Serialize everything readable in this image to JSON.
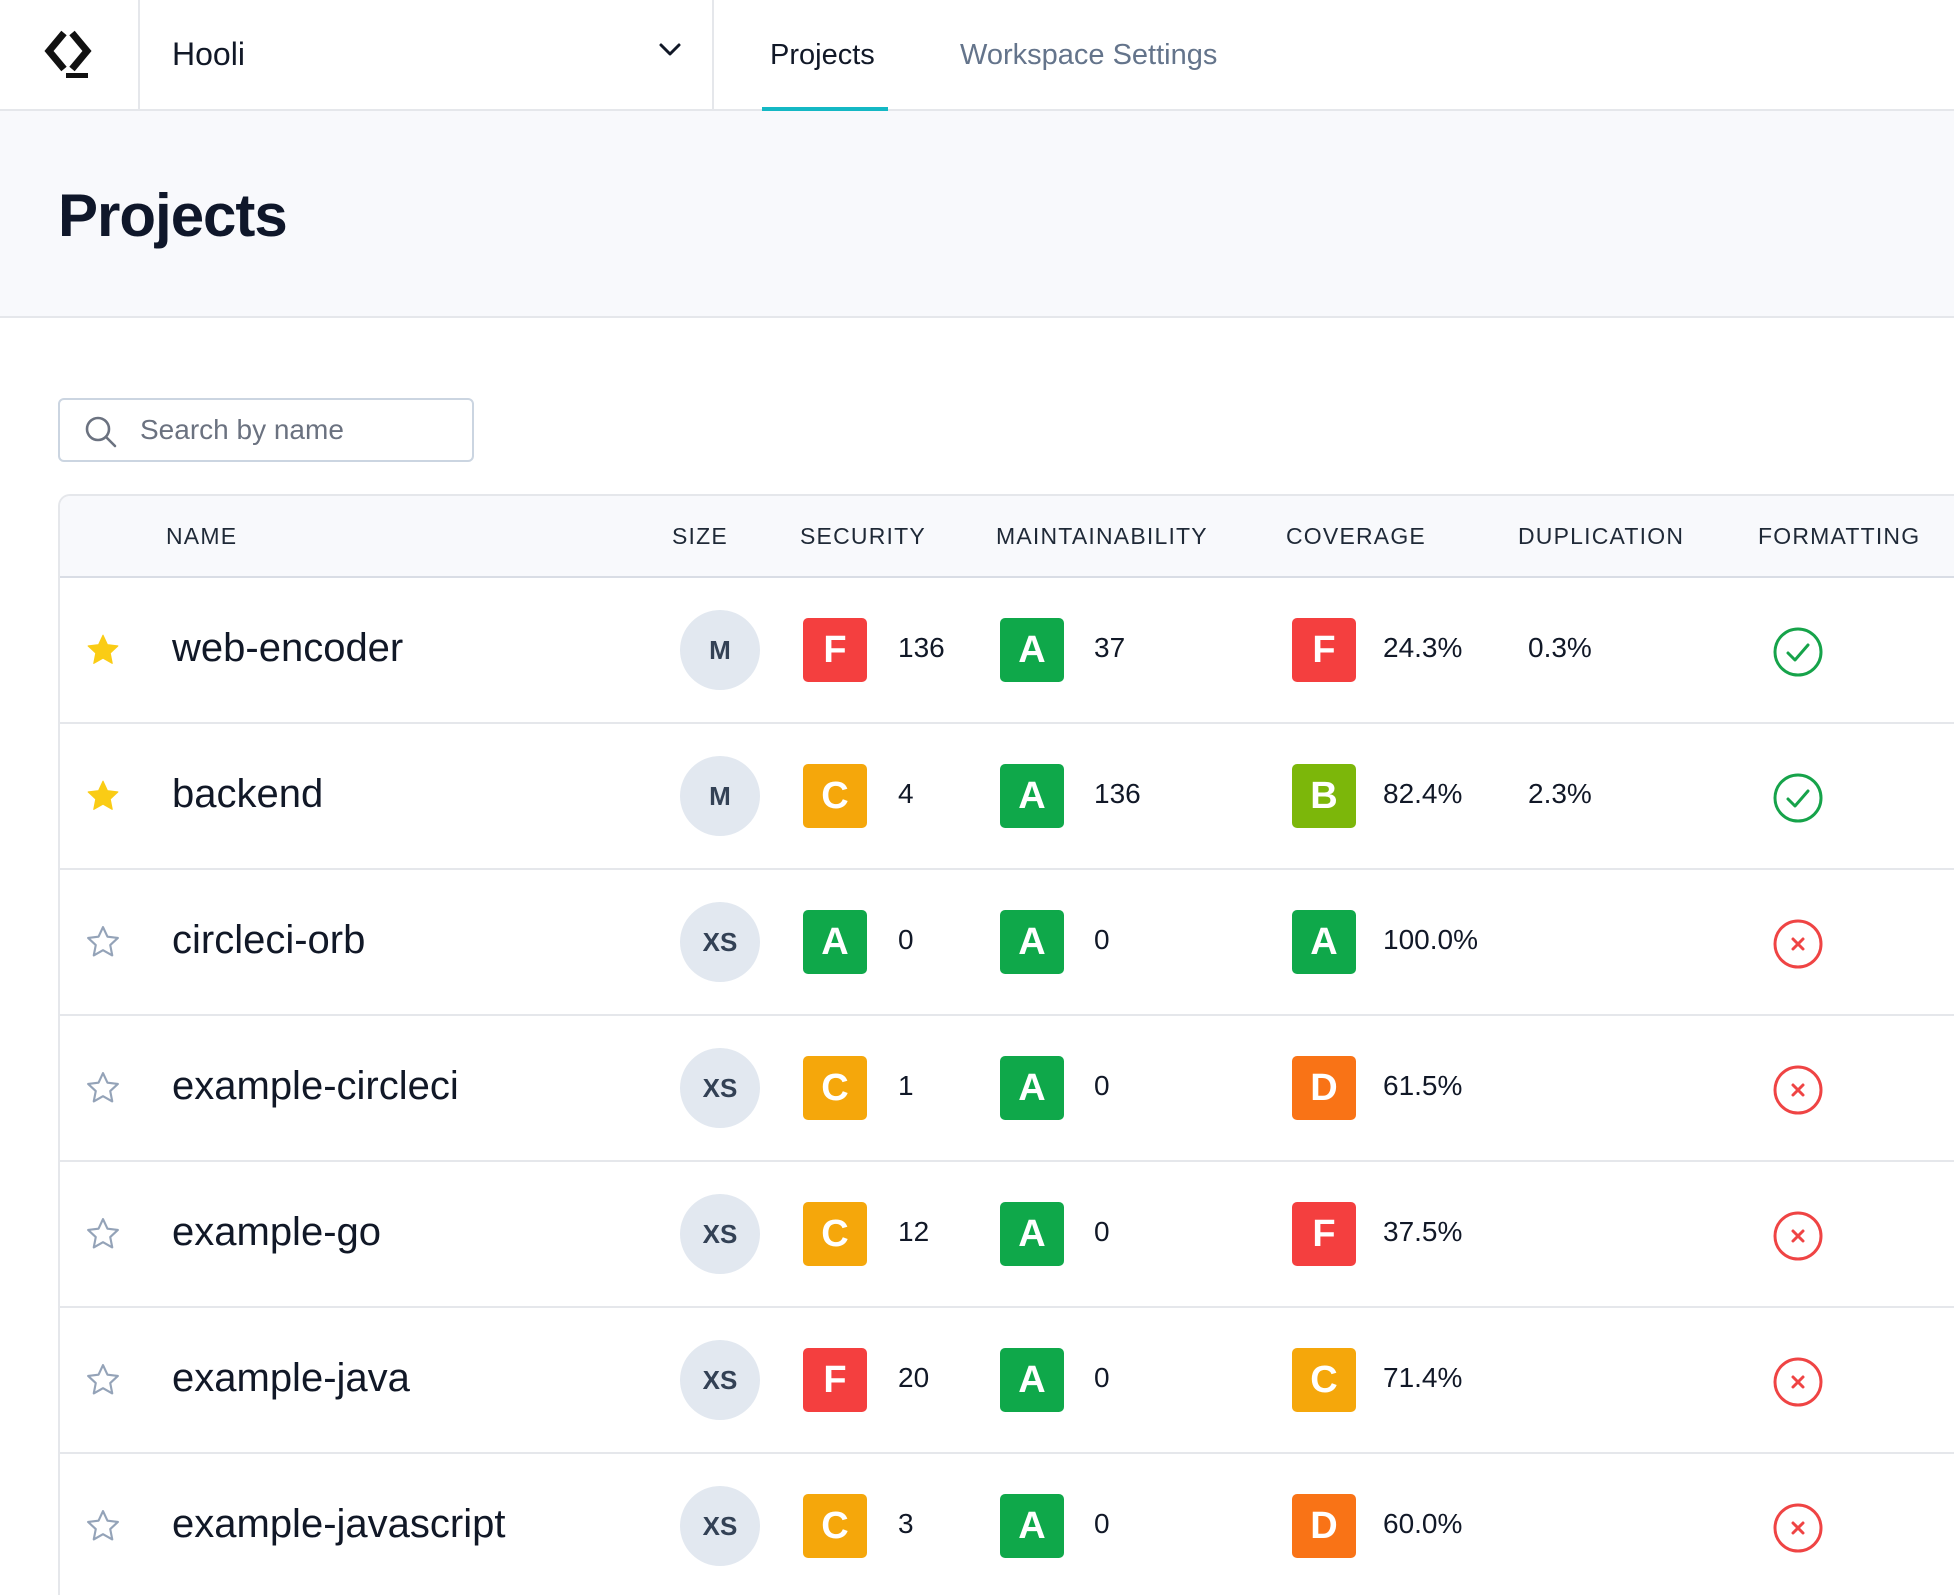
{
  "workspace": {
    "name": "Hooli"
  },
  "nav": {
    "tabs": [
      {
        "label": "Projects"
      },
      {
        "label": "Workspace Settings"
      }
    ]
  },
  "page": {
    "title": "Projects"
  },
  "search": {
    "placeholder": "Search by name",
    "value": ""
  },
  "table": {
    "columns": [
      "NAME",
      "SIZE",
      "SECURITY",
      "MAINTAINABILITY",
      "COVERAGE",
      "DUPLICATION",
      "FORMATTING"
    ],
    "rows": [
      {
        "starred": true,
        "name": "web-encoder",
        "size": "M",
        "security_grade": "F",
        "security_value": "136",
        "maintainability_grade": "A",
        "maintainability_value": "37",
        "coverage_grade": "F",
        "coverage_value": "24.3%",
        "duplication": "0.3%",
        "formatting": "pass"
      },
      {
        "starred": true,
        "name": "backend",
        "size": "M",
        "security_grade": "C",
        "security_value": "4",
        "maintainability_grade": "A",
        "maintainability_value": "136",
        "coverage_grade": "B",
        "coverage_value": "82.4%",
        "duplication": "2.3%",
        "formatting": "pass"
      },
      {
        "starred": false,
        "name": "circleci-orb",
        "size": "XS",
        "security_grade": "A",
        "security_value": "0",
        "maintainability_grade": "A",
        "maintainability_value": "0",
        "coverage_grade": "A",
        "coverage_value": "100.0%",
        "duplication": "",
        "formatting": "fail"
      },
      {
        "starred": false,
        "name": "example-circleci",
        "size": "XS",
        "security_grade": "C",
        "security_value": "1",
        "maintainability_grade": "A",
        "maintainability_value": "0",
        "coverage_grade": "D",
        "coverage_value": "61.5%",
        "duplication": "",
        "formatting": "fail"
      },
      {
        "starred": false,
        "name": "example-go",
        "size": "XS",
        "security_grade": "C",
        "security_value": "12",
        "maintainability_grade": "A",
        "maintainability_value": "0",
        "coverage_grade": "F",
        "coverage_value": "37.5%",
        "duplication": "",
        "formatting": "fail"
      },
      {
        "starred": false,
        "name": "example-java",
        "size": "XS",
        "security_grade": "F",
        "security_value": "20",
        "maintainability_grade": "A",
        "maintainability_value": "0",
        "coverage_grade": "C",
        "coverage_value": "71.4%",
        "duplication": "",
        "formatting": "fail"
      },
      {
        "starred": false,
        "name": "example-javascript",
        "size": "XS",
        "security_grade": "C",
        "security_value": "3",
        "maintainability_grade": "A",
        "maintainability_value": "0",
        "coverage_grade": "D",
        "coverage_value": "60.0%",
        "duplication": "",
        "formatting": "fail"
      }
    ]
  },
  "colors": {
    "accent": "#14b8c4",
    "star_filled": "#facc15",
    "star_empty": "#94a3b8",
    "pass": "#16a34a",
    "fail": "#ef4444",
    "grades": {
      "A": "#0fa84a",
      "B": "#7cb70a",
      "C": "#f5a70b",
      "D": "#f97316",
      "F": "#f43f3f"
    }
  },
  "icons": {
    "logo": "codacy-logo-icon",
    "chevron": "chevron-down-icon",
    "search": "search-icon",
    "star": "star-icon",
    "pass": "check-circle-icon",
    "fail": "x-circle-icon"
  }
}
